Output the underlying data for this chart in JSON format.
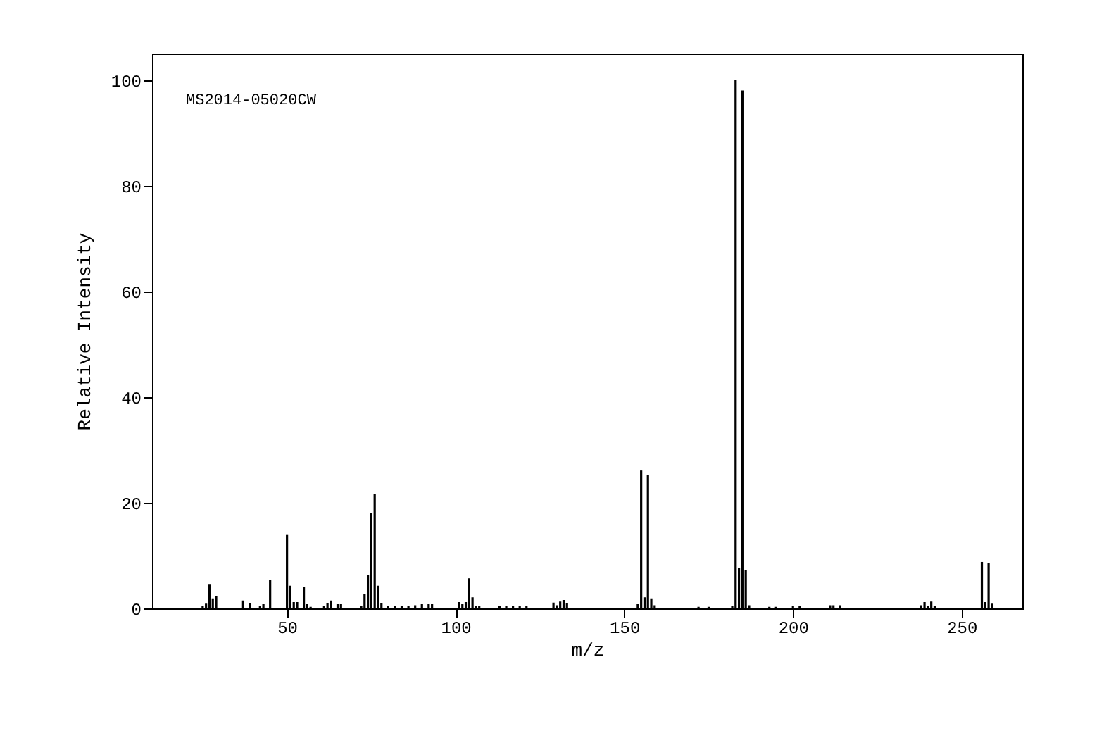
{
  "chart_data": {
    "type": "bar",
    "xlabel": "m/z",
    "ylabel": "Relative Intensity",
    "annotations": [
      "MS2014-05020CW"
    ],
    "x": [
      25,
      26,
      27,
      28,
      29,
      37,
      39,
      42,
      43,
      45,
      50,
      51,
      52,
      53,
      55,
      56,
      57,
      61,
      62,
      63,
      65,
      66,
      72,
      73,
      74,
      75,
      76,
      77,
      78,
      80,
      82,
      84,
      86,
      88,
      90,
      92,
      93,
      101,
      102,
      103,
      104,
      105,
      106,
      107,
      113,
      115,
      117,
      119,
      121,
      129,
      130,
      131,
      132,
      133,
      154,
      155,
      156,
      157,
      158,
      159,
      172,
      175,
      182,
      183,
      184,
      185,
      186,
      187,
      193,
      195,
      200,
      202,
      211,
      212,
      214,
      238,
      239,
      240,
      241,
      242,
      256,
      257,
      258,
      259
    ],
    "series": [
      {
        "color": "#000000",
        "values": [
          0.5,
          0.9,
          4.5,
          1.9,
          2.4,
          1.5,
          1.0,
          0.5,
          0.8,
          5.4,
          13.9,
          4.3,
          1.2,
          1.2,
          4.0,
          0.8,
          0.3,
          0.5,
          1.0,
          1.5,
          0.8,
          0.8,
          0.4,
          2.7,
          6.4,
          18.1,
          21.6,
          4.3,
          1.0,
          0.4,
          0.4,
          0.4,
          0.5,
          0.6,
          0.8,
          0.8,
          0.8,
          1.2,
          0.8,
          1.2,
          5.7,
          2.1,
          0.4,
          0.4,
          0.5,
          0.5,
          0.5,
          0.5,
          0.5,
          1.1,
          0.6,
          1.3,
          1.6,
          1.0,
          0.8,
          26.1,
          2.1,
          25.3,
          1.9,
          0.6,
          0.3,
          0.3,
          0.4,
          100,
          7.7,
          98,
          7.2,
          0.6,
          0.3,
          0.3,
          0.4,
          0.4,
          0.6,
          0.6,
          0.6,
          0.6,
          1.2,
          0.5,
          1.3,
          0.4,
          8.8,
          1.2,
          8.6,
          0.9
        ]
      }
    ],
    "xlim": [
      10,
      268
    ],
    "xticks": [
      50,
      100,
      150,
      200,
      250
    ],
    "ylim": [
      0,
      105
    ],
    "yticks": [
      0,
      20,
      40,
      60,
      80,
      100
    ],
    "grid": false
  }
}
